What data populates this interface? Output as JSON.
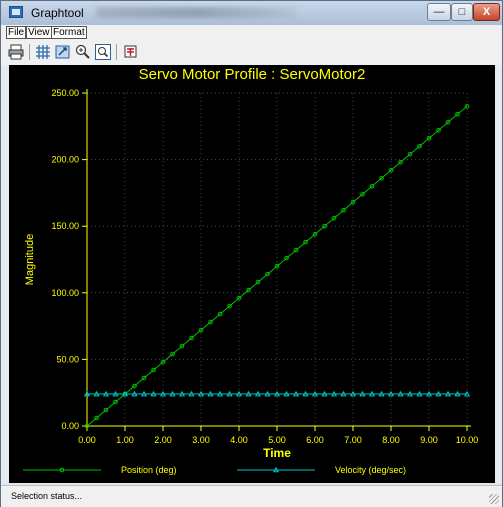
{
  "window": {
    "title": "Graphtool"
  },
  "window_controls": {
    "minimize": "—",
    "maximize": "□",
    "close": "X"
  },
  "menu": {
    "items": [
      "File",
      "View",
      "Format"
    ]
  },
  "toolbar": {
    "buttons": [
      "print-icon",
      "grid-icon",
      "zoom-fit-icon",
      "zoom-in-icon",
      "zoom-window-icon",
      "export-icon"
    ]
  },
  "status": {
    "text": "Selection status..."
  },
  "colors": {
    "background": "#000000",
    "axis": "#ffff00",
    "grid": "#4a4a4a",
    "position": "#00c000",
    "velocity": "#00c8c8"
  },
  "chart_data": {
    "type": "line",
    "title": "Servo Motor Profile : ServoMotor2",
    "xlabel": "Time",
    "ylabel": "Magnitude",
    "xlim": [
      0,
      10
    ],
    "ylim": [
      0,
      250
    ],
    "grid": true,
    "legend_position": "bottom",
    "x_ticks": [
      "0.00",
      "1.00",
      "2.00",
      "3.00",
      "4.00",
      "5.00",
      "6.00",
      "7.00",
      "8.00",
      "9.00",
      "10.00"
    ],
    "y_ticks": [
      "0.00",
      "50.00",
      "100.00",
      "150.00",
      "200.00",
      "250.00"
    ],
    "x": [
      0,
      0.25,
      0.5,
      0.75,
      1,
      1.25,
      1.5,
      1.75,
      2,
      2.25,
      2.5,
      2.75,
      3,
      3.25,
      3.5,
      3.75,
      4,
      4.25,
      4.5,
      4.75,
      5,
      5.25,
      5.5,
      5.75,
      6,
      6.25,
      6.5,
      6.75,
      7,
      7.25,
      7.5,
      7.75,
      8,
      8.25,
      8.5,
      8.75,
      9,
      9.25,
      9.5,
      9.75,
      10
    ],
    "series": [
      {
        "name": "Position (deg)",
        "color": "#00c000",
        "marker": "circle",
        "values": [
          0,
          6,
          12,
          18,
          24,
          30,
          36,
          42,
          48,
          54,
          60,
          66,
          72,
          78,
          84,
          90,
          96,
          102,
          108,
          114,
          120,
          126,
          132,
          138,
          144,
          150,
          156,
          162,
          168,
          174,
          180,
          186,
          192,
          198,
          204,
          210,
          216,
          222,
          228,
          234,
          240
        ]
      },
      {
        "name": "Velocity (deg/sec)",
        "color": "#00c8c8",
        "marker": "triangle",
        "values": [
          24,
          24,
          24,
          24,
          24,
          24,
          24,
          24,
          24,
          24,
          24,
          24,
          24,
          24,
          24,
          24,
          24,
          24,
          24,
          24,
          24,
          24,
          24,
          24,
          24,
          24,
          24,
          24,
          24,
          24,
          24,
          24,
          24,
          24,
          24,
          24,
          24,
          24,
          24,
          24,
          24
        ]
      }
    ]
  }
}
